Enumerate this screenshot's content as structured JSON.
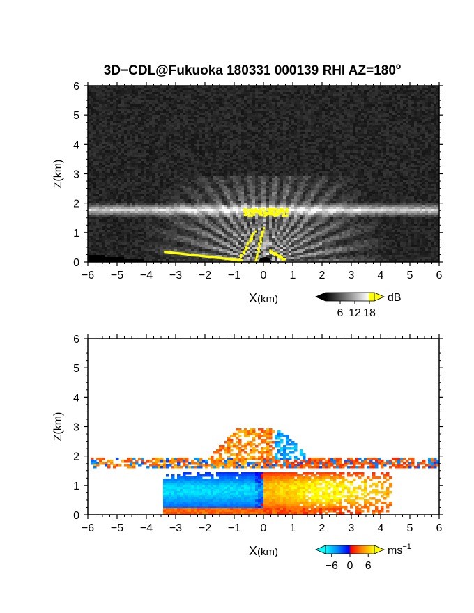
{
  "title": "3D−CDL@Fukuoka 180331 000139 RHI AZ=180",
  "title_sup": "o",
  "chart_data": [
    {
      "type": "heatmap",
      "name": "reflectivity",
      "xlabel_main": "X",
      "xlabel_unit": "(km)",
      "ylabel": "Z(km)",
      "xlim": [
        -6,
        6
      ],
      "ylim": [
        0,
        6
      ],
      "x_ticks": [
        "−6",
        "−5",
        "−4",
        "−3",
        "−2",
        "−1",
        "0",
        "1",
        "2",
        "3",
        "4",
        "5",
        "6"
      ],
      "y_ticks": [
        "0",
        "1",
        "2",
        "3",
        "4",
        "5",
        "6"
      ],
      "colorbar": {
        "ticks": [
          "6",
          "12",
          "18"
        ],
        "tick_values": [
          6,
          12,
          18
        ],
        "range": [
          0,
          20
        ],
        "unit": "dB",
        "colors": [
          "#000000",
          "#ffffff",
          "#ffff00"
        ]
      },
      "features": {
        "aerosol_layer_height_km": 1.8,
        "saturated_value_color": "#ffff00"
      }
    },
    {
      "type": "heatmap",
      "name": "doppler_velocity",
      "xlabel_main": "X",
      "xlabel_unit": "(km)",
      "ylabel": "Z(km)",
      "xlim": [
        -6,
        6
      ],
      "ylim": [
        0,
        6
      ],
      "x_ticks": [
        "−6",
        "−5",
        "−4",
        "−3",
        "−2",
        "−1",
        "0",
        "1",
        "2",
        "3",
        "4",
        "5",
        "6"
      ],
      "y_ticks": [
        "0",
        "1",
        "2",
        "3",
        "4",
        "5",
        "6"
      ],
      "colorbar": {
        "ticks": [
          "−6",
          "0",
          "6"
        ],
        "tick_values": [
          -6,
          0,
          6
        ],
        "range": [
          -8,
          8
        ],
        "unit": "ms",
        "unit_sup": "−1",
        "colors": [
          "#00ffff",
          "#0080ff",
          "#0000ff",
          "#ff0000",
          "#ff8000",
          "#ffff00"
        ]
      },
      "features": {
        "negative_region_km": [
          -3.5,
          0
        ],
        "positive_region_km": [
          0,
          4.3
        ]
      }
    }
  ]
}
